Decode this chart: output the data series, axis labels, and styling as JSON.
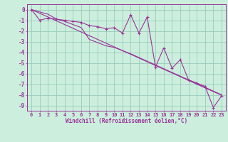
{
  "xlabel": "Windchill (Refroidissement éolien,°C)",
  "line1_y": [
    0,
    -1,
    -0.8,
    -0.9,
    -1.0,
    -1.1,
    -1.2,
    -1.5,
    -1.6,
    -1.8,
    -1.7,
    -2.2,
    -0.5,
    -2.2,
    -0.7,
    -5.4,
    -3.6,
    -5.5,
    -4.7,
    -6.6,
    -6.9,
    -7.2,
    -9.2,
    -8.1
  ],
  "line2_y": [
    0,
    -0.35,
    -0.7,
    -1.05,
    -1.4,
    -1.75,
    -2.1,
    -2.45,
    -2.8,
    -3.15,
    -3.5,
    -3.85,
    -4.2,
    -4.55,
    -4.9,
    -5.25,
    -5.6,
    -5.95,
    -6.3,
    -6.65,
    -7.0,
    -7.35,
    -7.7,
    -8.05
  ],
  "line3_y": [
    0,
    -0.22,
    -0.44,
    -0.88,
    -1.1,
    -1.4,
    -1.68,
    -2.8,
    -3.1,
    -3.4,
    -3.55,
    -3.85,
    -4.15,
    -4.5,
    -4.85,
    -5.2,
    -5.55,
    -5.9,
    -6.25,
    -6.6,
    -6.95,
    -7.3,
    -7.65,
    -8.0
  ],
  "line_color": "#993399",
  "bg_color": "#cceedd",
  "grid_color": "#99ccbb",
  "text_color": "#993399",
  "ylim": [
    -9.5,
    0.5
  ],
  "xlim": [
    -0.5,
    23.5
  ],
  "yticks": [
    0,
    -1,
    -2,
    -3,
    -4,
    -5,
    -6,
    -7,
    -8,
    -9
  ],
  "xticks": [
    0,
    1,
    2,
    3,
    4,
    5,
    6,
    7,
    8,
    9,
    10,
    11,
    12,
    13,
    14,
    15,
    16,
    17,
    18,
    19,
    20,
    21,
    22,
    23
  ],
  "tick_fontsize": 5.0,
  "xlabel_fontsize": 5.5
}
